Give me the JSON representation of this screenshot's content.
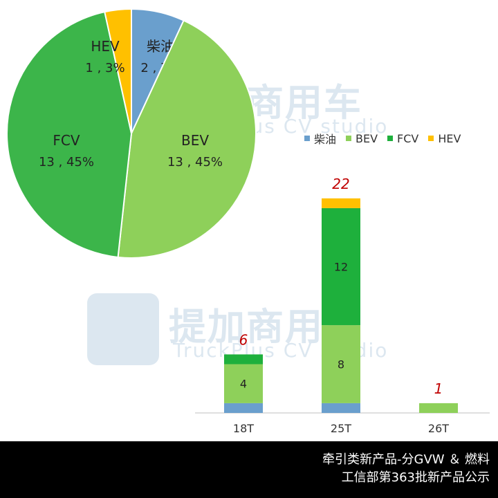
{
  "chart_data": [
    {
      "type": "pie",
      "slices": [
        {
          "name": "柴油",
          "value": 2,
          "percent": "7%",
          "label": "2 , 7%",
          "color": "#6a9fcd"
        },
        {
          "name": "BEV",
          "value": 13,
          "percent": "45%",
          "label": "13 , 45%",
          "color": "#8ed05a"
        },
        {
          "name": "FCV",
          "value": 13,
          "percent": "45%",
          "label": "13 , 45%",
          "color": "#3cb54a"
        },
        {
          "name": "HEV",
          "value": 1,
          "percent": "3%",
          "label": "1 , 3%",
          "color": "#ffc000"
        }
      ]
    },
    {
      "type": "bar",
      "stacked": true,
      "categories": [
        "18T",
        "25T",
        "26T"
      ],
      "series": [
        {
          "name": "柴油",
          "values": [
            1,
            1,
            0
          ],
          "color": "#6a9fcd"
        },
        {
          "name": "BEV",
          "values": [
            4,
            8,
            1
          ],
          "color": "#8ed05a"
        },
        {
          "name": "FCV",
          "values": [
            1,
            12,
            0
          ],
          "color": "#1eb03c"
        },
        {
          "name": "HEV",
          "values": [
            0,
            1,
            0
          ],
          "color": "#ffc000"
        }
      ],
      "segment_labels": [
        {
          "category": "18T",
          "series": "BEV",
          "text": "4"
        },
        {
          "category": "25T",
          "series": "BEV",
          "text": "8"
        },
        {
          "category": "25T",
          "series": "FCV",
          "text": "12"
        }
      ],
      "totals": [
        "6",
        "22",
        "1"
      ],
      "total_color": "#c00000",
      "legend": [
        "柴油",
        "BEV",
        "FCV",
        "HEV"
      ],
      "legend_position": "top-right"
    }
  ],
  "footer": {
    "line1": "牵引类新产品-分GVW ＆ 燃料",
    "line2": "工信部第363批新产品公示"
  },
  "watermark": {
    "cn": "提加商用车",
    "en": "TruckPlus CV studio"
  }
}
